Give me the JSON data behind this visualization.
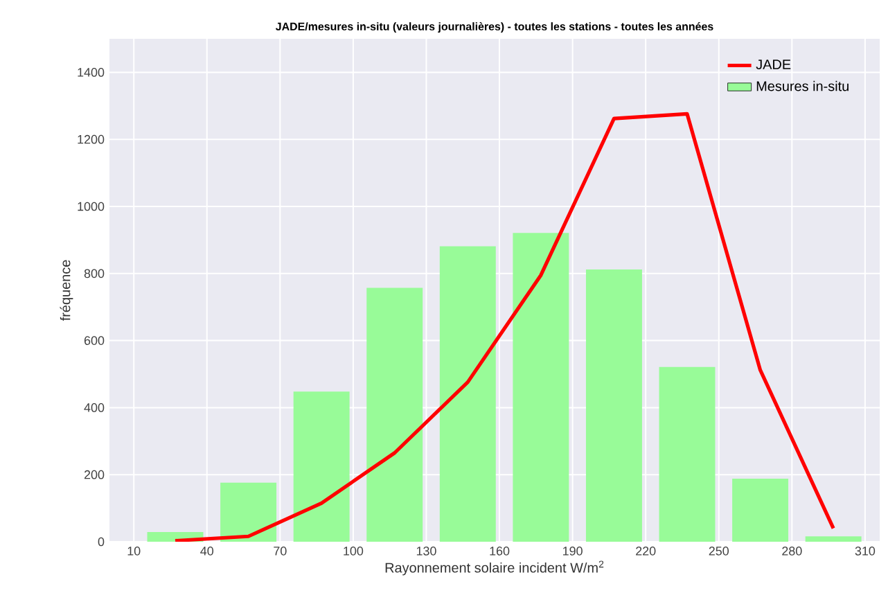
{
  "chart_data": {
    "type": "bar",
    "title": "JADE/mesures in-situ (valeurs journalières) - toutes les stations - toutes les années",
    "xlabel": "Rayonnement solaire incident W/m$^{2}$",
    "ylabel": "fréquence",
    "x": [
      27,
      57,
      87,
      117,
      147,
      177,
      207,
      237,
      267,
      297
    ],
    "series": [
      {
        "name": "JADE",
        "type": "line",
        "color": "#ff0000",
        "values": [
          3,
          16,
          115,
          265,
          476,
          795,
          1262,
          1276,
          512,
          40
        ]
      },
      {
        "name": "Mesures in-situ",
        "color": "#98fb98",
        "values": [
          29,
          176,
          448,
          757,
          881,
          921,
          812,
          521,
          188,
          16
        ]
      }
    ],
    "xlim": [
      0,
      316
    ],
    "ylim": [
      0,
      1500
    ],
    "xticks": [
      10,
      40,
      70,
      100,
      130,
      160,
      190,
      220,
      250,
      280,
      310
    ],
    "yticks": [
      0,
      200,
      400,
      600,
      800,
      1000,
      1200,
      1400
    ],
    "grid": true,
    "legend": "top right"
  }
}
